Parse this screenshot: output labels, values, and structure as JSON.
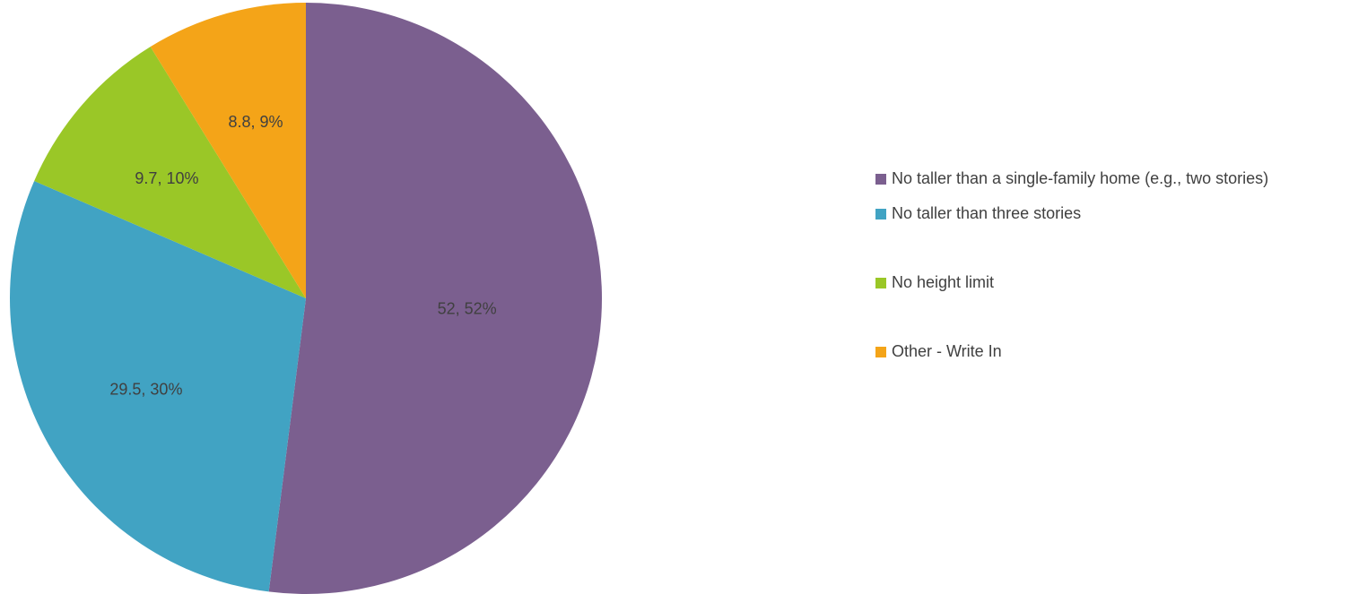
{
  "chart_data": {
    "type": "pie",
    "slices": [
      {
        "name": "No taller than a single-family home (e.g., two stories)",
        "value": 52,
        "label": "52, 52%",
        "color": "#7b5f8f"
      },
      {
        "name": "No taller than three stories",
        "value": 29.5,
        "label": "29.5, 30%",
        "color": "#41a3c3"
      },
      {
        "name": "No height limit",
        "value": 9.7,
        "label": "9.7, 10%",
        "color": "#9ac727"
      },
      {
        "name": "Other - Write In",
        "value": 8.8,
        "label": "8.8, 9%",
        "color": "#f4a418"
      }
    ],
    "start_angle_deg": 0,
    "direction": "clockwise",
    "legend_position": "right"
  }
}
